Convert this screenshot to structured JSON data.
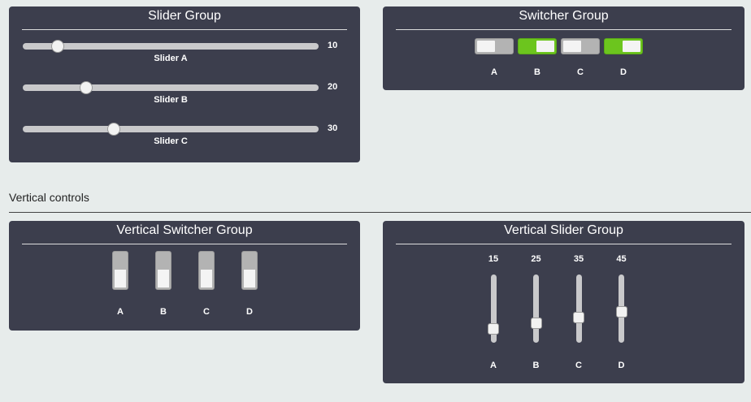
{
  "slider_group": {
    "title": "Slider Group",
    "sliders": [
      {
        "label": "Slider A",
        "value": 10
      },
      {
        "label": "Slider B",
        "value": 20
      },
      {
        "label": "Slider C",
        "value": 30
      }
    ],
    "range": [
      0,
      100
    ]
  },
  "switcher_group": {
    "title": "Switcher Group",
    "switches": [
      {
        "label": "A",
        "on": false
      },
      {
        "label": "B",
        "on": true
      },
      {
        "label": "C",
        "on": false
      },
      {
        "label": "D",
        "on": true
      }
    ],
    "on_color": "#6cc51e"
  },
  "section_title": "Vertical controls",
  "vertical_switcher_group": {
    "title": "Vertical Switcher Group",
    "switches": [
      {
        "label": "A",
        "on": false
      },
      {
        "label": "B",
        "on": false
      },
      {
        "label": "C",
        "on": false
      },
      {
        "label": "D",
        "on": false
      }
    ]
  },
  "vertical_slider_group": {
    "title": "Vertical Slider Group",
    "sliders": [
      {
        "label": "A",
        "value": 15
      },
      {
        "label": "B",
        "value": 25
      },
      {
        "label": "C",
        "value": 35
      },
      {
        "label": "D",
        "value": 45
      }
    ],
    "range": [
      0,
      100
    ]
  }
}
